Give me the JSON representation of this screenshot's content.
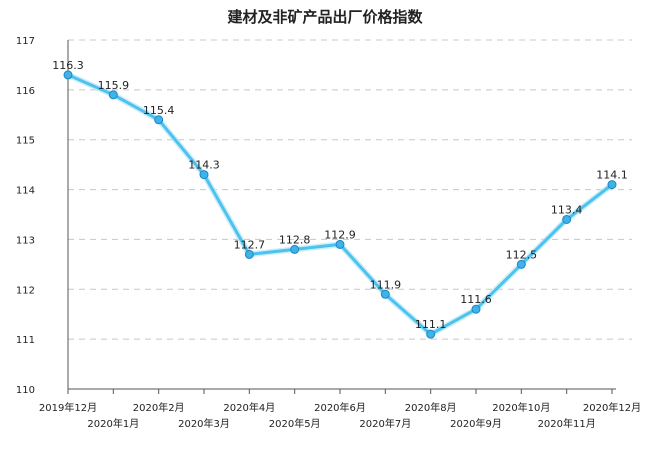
{
  "chart_data": {
    "type": "line",
    "title": "建材及非矿产品出厂价格指数",
    "xlabel": "",
    "ylabel": "",
    "categories": [
      "2019年12月",
      "2020年1月",
      "2020年2月",
      "2020年3月",
      "2020年4月",
      "2020年5月",
      "2020年6月",
      "2020年7月",
      "2020年8月",
      "2020年9月",
      "2020年10月",
      "2020年11月",
      "2020年12月"
    ],
    "series": [
      {
        "values": [
          116.3,
          115.9,
          115.4,
          114.3,
          112.7,
          112.8,
          112.9,
          111.9,
          111.1,
          111.6,
          112.5,
          113.4,
          114.1
        ]
      }
    ],
    "ylim": [
      110,
      117
    ],
    "yticks": [
      "110",
      "111",
      "112",
      "113",
      "114",
      "115",
      "116",
      "117"
    ],
    "grid": true,
    "legend": "none",
    "colors": {
      "line": "#4cc3ee",
      "marker_fill": "#3fb2e6",
      "marker_stroke": "#1a86c7",
      "grid": "#c8c8c8",
      "axis": "#555555"
    }
  }
}
